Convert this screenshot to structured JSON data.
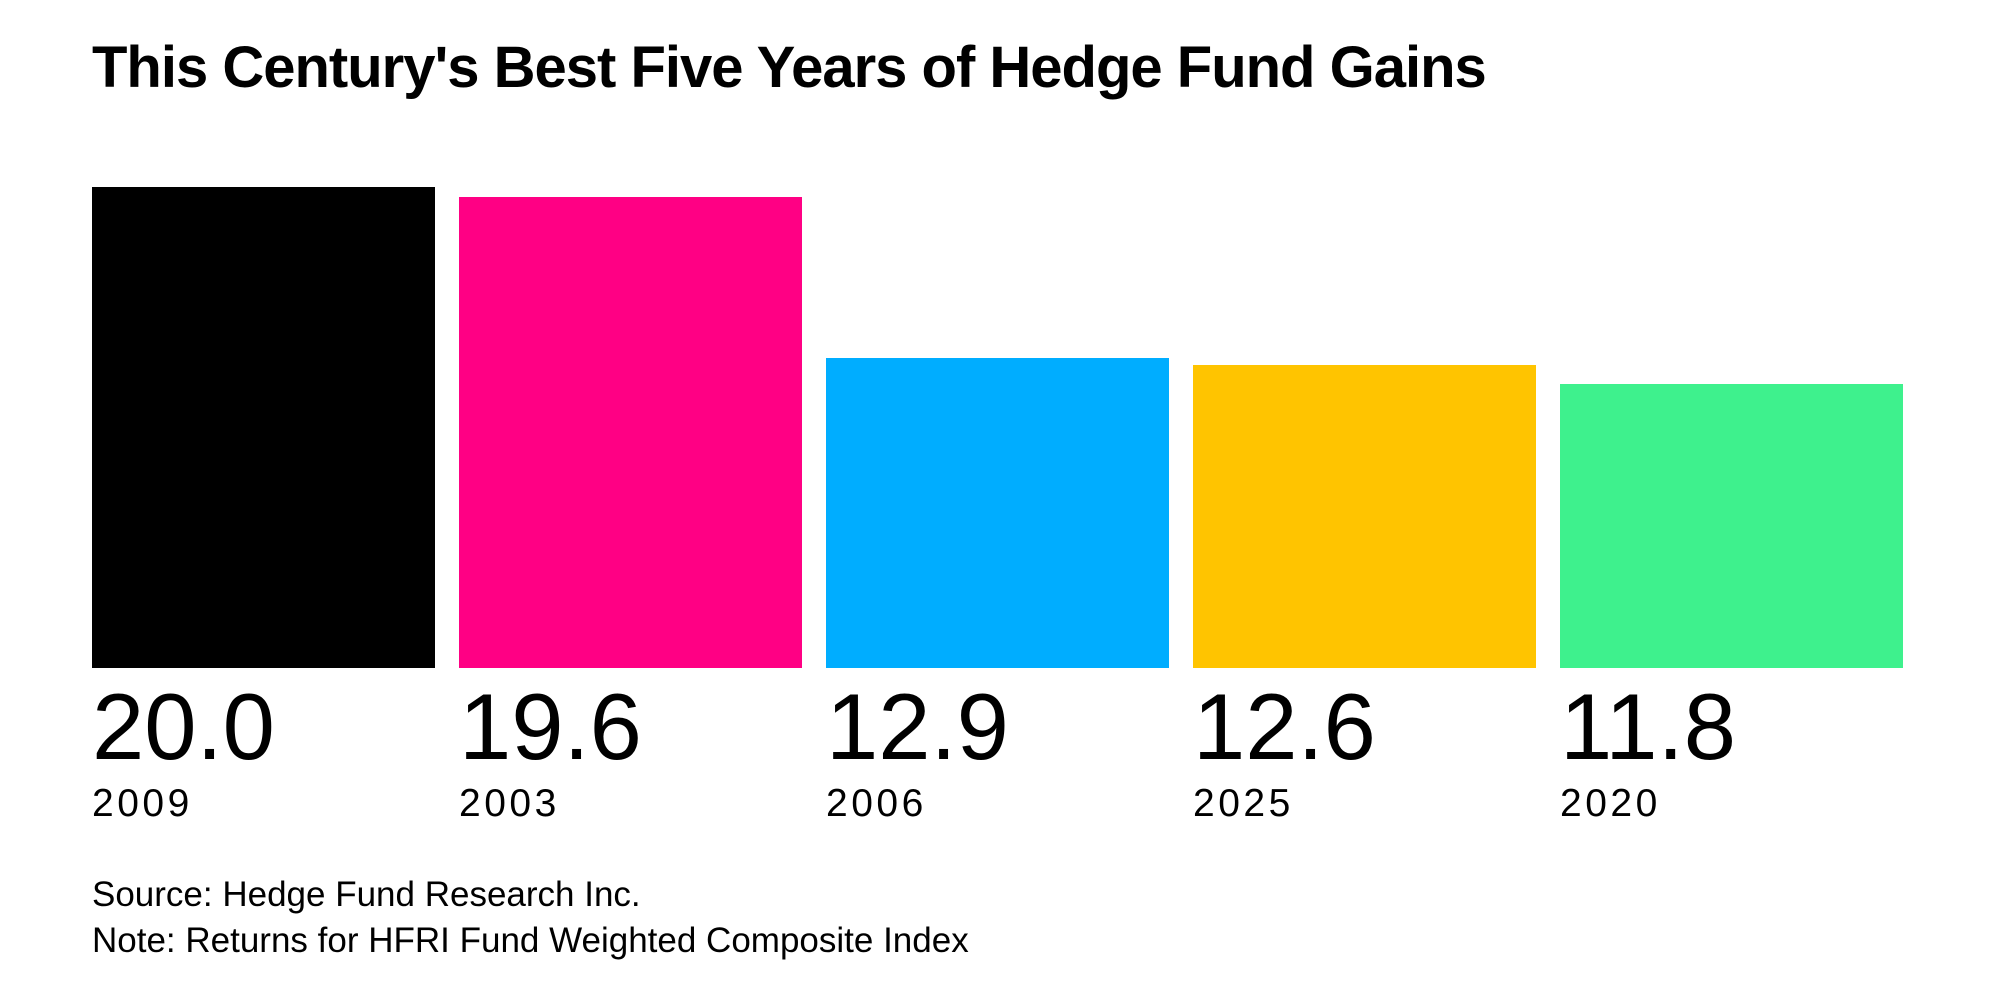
{
  "chart_data": {
    "type": "bar",
    "title": "This Century's Best Five Years of Hedge Fund Gains",
    "orientation": "vertical",
    "categories": [
      "2009",
      "2003",
      "2006",
      "2025",
      "2020"
    ],
    "values": [
      20.0,
      19.6,
      12.9,
      12.6,
      11.8
    ],
    "value_labels": [
      "20.0",
      "19.6",
      "12.9",
      "12.6",
      "11.8"
    ],
    "bar_colors": [
      "#000000",
      "#FF0084",
      "#00ADFF",
      "#FFC400",
      "#3EF18D"
    ],
    "unit": "percent",
    "ylim": [
      0,
      27.8
    ],
    "grid": false,
    "legend": false,
    "axis_lines": false,
    "source": "Source: Hedge Fund Research Inc.",
    "note": "Note: Returns for HFRI Fund Weighted Composite Index"
  }
}
